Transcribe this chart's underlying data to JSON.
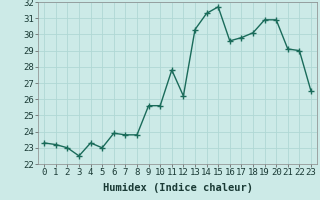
{
  "x": [
    0,
    1,
    2,
    3,
    4,
    5,
    6,
    7,
    8,
    9,
    10,
    11,
    12,
    13,
    14,
    15,
    16,
    17,
    18,
    19,
    20,
    21,
    22,
    23
  ],
  "y": [
    23.3,
    23.2,
    23.0,
    22.5,
    23.3,
    23.0,
    23.9,
    23.8,
    23.8,
    25.6,
    25.6,
    27.8,
    26.2,
    30.3,
    31.3,
    31.7,
    29.6,
    29.8,
    30.1,
    30.9,
    30.9,
    29.1,
    29.0,
    26.5
  ],
  "line_color": "#1a6b5a",
  "marker_color": "#1a6b5a",
  "bg_color": "#cceae7",
  "grid_color": "#b0d8d4",
  "xlabel": "Humidex (Indice chaleur)",
  "ylim": [
    22,
    32
  ],
  "xlim": [
    -0.5,
    23.5
  ],
  "yticks": [
    22,
    23,
    24,
    25,
    26,
    27,
    28,
    29,
    30,
    31,
    32
  ],
  "xticks": [
    0,
    1,
    2,
    3,
    4,
    5,
    6,
    7,
    8,
    9,
    10,
    11,
    12,
    13,
    14,
    15,
    16,
    17,
    18,
    19,
    20,
    21,
    22,
    23
  ],
  "xlabel_fontsize": 7.5,
  "tick_fontsize": 6.5,
  "linewidth": 1.0,
  "markersize": 2.5
}
